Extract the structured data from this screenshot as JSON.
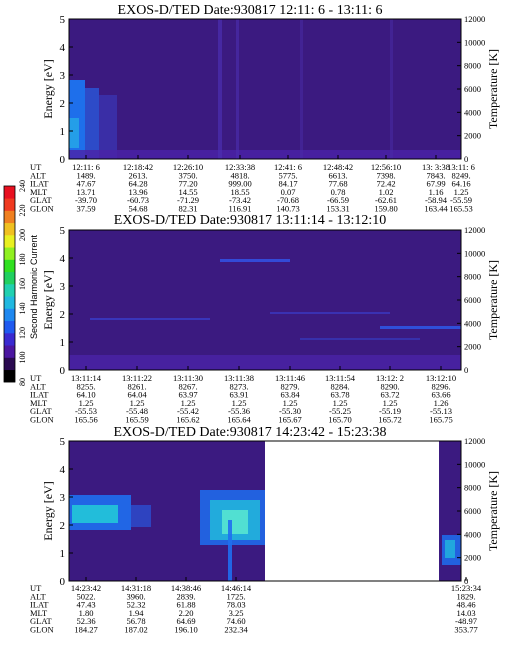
{
  "chart_data": [
    {
      "type": "heatmap",
      "title": "EXOS-D/TED   Date:930817  12:11: 6 - 13:11: 6",
      "ylabel": "Energy [eV]",
      "y2label": "Temperature [K]",
      "ylim": [
        0,
        5
      ],
      "y2lim": [
        0,
        12000
      ],
      "yticks": [
        "0",
        "1",
        "2",
        "3",
        "4",
        "5"
      ],
      "y2ticks": [
        "0",
        "2000",
        "4000",
        "6000",
        "8000",
        "10000",
        "12000"
      ],
      "table": {
        "labels": [
          "UT",
          "ALT",
          "ILAT",
          "MLT",
          "GLAT",
          "GLON"
        ],
        "columns": [
          [
            "12:11: 6",
            "1489.",
            "47.67",
            "13.71",
            "-39.70",
            "37.59"
          ],
          [
            "12:18:42",
            "2613.",
            "64.28",
            "13.96",
            "-60.73",
            "54.68"
          ],
          [
            "12:26:10",
            "3750.",
            "77.20",
            "14.55",
            "-71.29",
            "82.31"
          ],
          [
            "12:33:38",
            "4818.",
            "999.00",
            "18.55",
            "-73.42",
            "116.91"
          ],
          [
            "12:41: 6",
            "5775.",
            "84.17",
            "0.07",
            "-70.68",
            "140.73"
          ],
          [
            "12:48:42",
            "6613.",
            "77.68",
            "0.78",
            "-66.59",
            "153.31"
          ],
          [
            "12:56:10",
            "7398.",
            "72.42",
            "1.02",
            "-62.61",
            "159.80"
          ],
          [
            "13: 3:38",
            "7843.",
            "67.99",
            "1.16",
            "-58.94",
            "163.44"
          ],
          [
            "13:11: 6",
            "8249.",
            "64.16",
            "1.25",
            "-55.59",
            "165.53"
          ]
        ]
      }
    },
    {
      "type": "heatmap",
      "title": "EXOS-D/TED   Date:930817  13:11:14 - 13:12:10",
      "ylabel": "Energy [eV]",
      "y2label": "Temperature [K]",
      "ylim": [
        0,
        5
      ],
      "y2lim": [
        0,
        12000
      ],
      "yticks": [
        "0",
        "1",
        "2",
        "3",
        "4",
        "5"
      ],
      "y2ticks": [
        "0",
        "2000",
        "4000",
        "6000",
        "8000",
        "10000",
        "12000"
      ],
      "colorbar": {
        "label": "Second Harmonic Current",
        "ticks": [
          "80",
          "100",
          "120",
          "140",
          "160",
          "180",
          "200",
          "220",
          "240"
        ]
      },
      "table": {
        "labels": [
          "UT",
          "ALT",
          "ILAT",
          "MLT",
          "GLAT",
          "GLON"
        ],
        "columns": [
          [
            "13:11:14",
            "8255.",
            "64.10",
            "1.25",
            "-55.53",
            "165.56"
          ],
          [
            "13:11:22",
            "8261.",
            "64.04",
            "1.25",
            "-55.48",
            "165.59"
          ],
          [
            "13:11:30",
            "8267.",
            "63.97",
            "1.25",
            "-55.42",
            "165.62"
          ],
          [
            "13:11:38",
            "8273.",
            "63.91",
            "1.25",
            "-55.36",
            "165.64"
          ],
          [
            "13:11:46",
            "8279.",
            "63.84",
            "1.25",
            "-55.30",
            "165.67"
          ],
          [
            "13:11:54",
            "8284.",
            "63.78",
            "1.25",
            "-55.25",
            "165.70"
          ],
          [
            "13:12: 2",
            "8290.",
            "63.72",
            "1.25",
            "-55.19",
            "165.72"
          ],
          [
            "13:12:10",
            "8296.",
            "63.66",
            "1.26",
            "-55.13",
            "165.75"
          ]
        ]
      }
    },
    {
      "type": "heatmap",
      "title": "EXOS-D/TED   Date:930817  14:23:42 - 15:23:38",
      "ylabel": "Energy [eV]",
      "y2label": "Temperature [K]",
      "ylim": [
        0,
        5
      ],
      "y2lim": [
        0,
        12000
      ],
      "yticks": [
        "0",
        "1",
        "2",
        "3",
        "4",
        "5"
      ],
      "y2ticks": [
        "0",
        "2000",
        "4000",
        "6000",
        "8000",
        "10000",
        "12000"
      ],
      "table": {
        "labels": [
          "UT",
          "ALT",
          "ILAT",
          "MLT",
          "GLAT",
          "GLON"
        ],
        "columns": [
          [
            "14:23:42",
            "5022.",
            "47.43",
            "1.80",
            "52.36",
            "184.27"
          ],
          [
            "14:31:18",
            "3960.",
            "52.32",
            "1.94",
            "56.78",
            "187.02"
          ],
          [
            "14:38:46",
            "2839.",
            "61.88",
            "2.20",
            "64.69",
            "196.10"
          ],
          [
            "14:46:14",
            "1725.",
            "78.03",
            "3.25",
            "74.60",
            "232.34"
          ],
          [
            "15:23:34",
            "1829.",
            "48.46",
            "14.03",
            "-48.97",
            "353.77"
          ]
        ]
      }
    }
  ],
  "colors": {
    "background": "#3c1a7a",
    "low": "#4a1fa0",
    "mid": "#2a5de0",
    "high": "#22c6d8"
  }
}
